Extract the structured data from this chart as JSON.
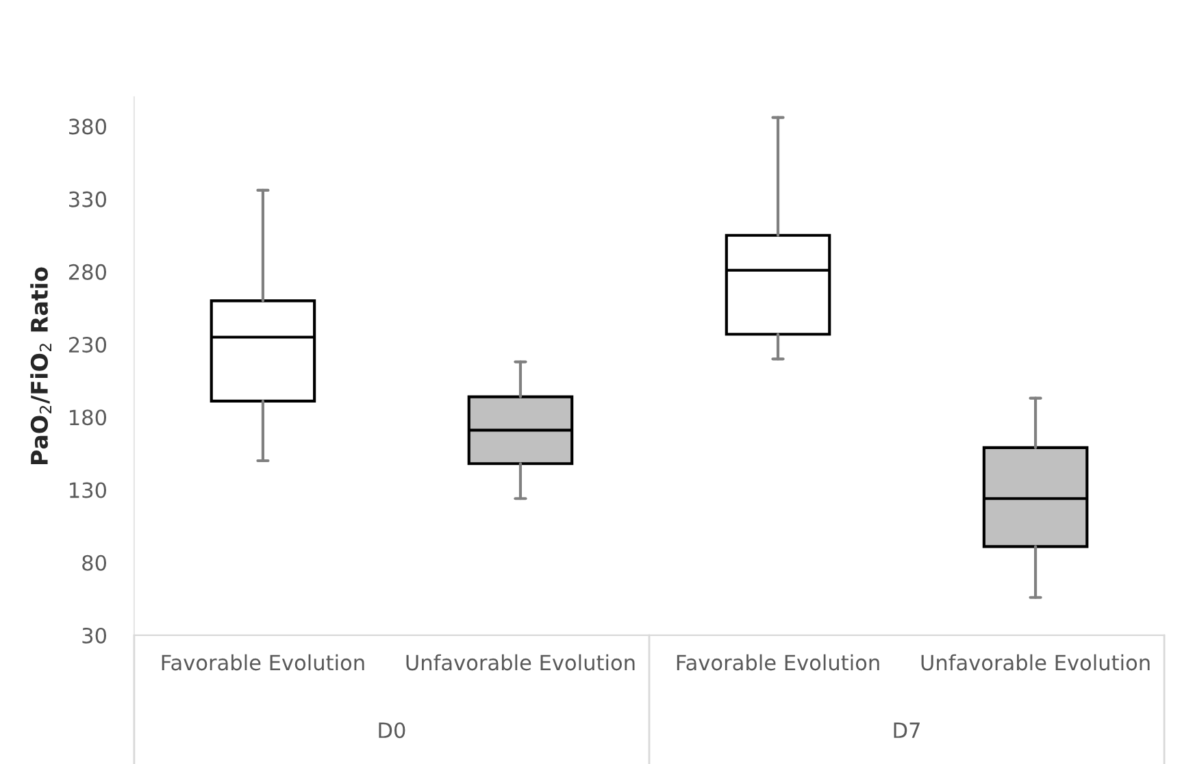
{
  "chart_data": {
    "type": "box",
    "ylabel": "PaO$_{2}$/FiO$_{2}$ Ratio",
    "categories": [
      "Favorable Evolution",
      "Unfavorable Evolution",
      "Favorable Evolution",
      "Unfavorable Evolution"
    ],
    "colors": [
      "#ffffff",
      "#c0c0c0",
      "#ffffff",
      "#c0c0c0"
    ],
    "boxes": [
      {
        "low": 150,
        "q1": 191,
        "median": 235,
        "q3": 260,
        "high": 336
      },
      {
        "low": 124,
        "q1": 148,
        "median": 171,
        "q3": 194,
        "high": 218
      },
      {
        "low": 220,
        "q1": 237,
        "median": 281,
        "q3": 305,
        "high": 386
      },
      {
        "low": 56,
        "q1": 91,
        "median": 124,
        "q3": 159,
        "high": 193
      }
    ],
    "annotations": [
      "D0",
      "D7"
    ],
    "ylim": [
      30,
      400
    ],
    "yticks": [
      30,
      80,
      130,
      180,
      230,
      280,
      330,
      380
    ],
    "grid": false,
    "legend": false
  }
}
